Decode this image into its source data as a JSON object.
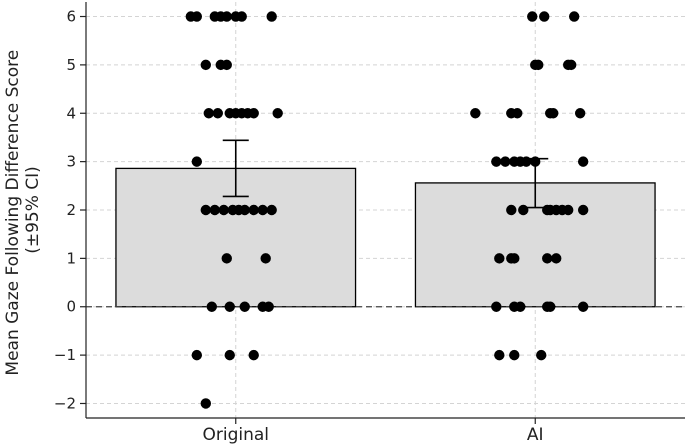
{
  "chart_data": {
    "type": "bar",
    "title": "",
    "xlabel": "",
    "ylabel_lines": [
      "Mean Gaze Following Difference Score",
      "(±95% CI)"
    ],
    "categories": [
      "Original",
      "AI"
    ],
    "values": [
      2.86,
      2.56
    ],
    "ci": [
      [
        2.28,
        3.44
      ],
      [
        2.05,
        3.06
      ]
    ],
    "ylim": [
      -2.3,
      6.3
    ],
    "yticks": [
      -2,
      -1,
      0,
      1,
      2,
      3,
      4,
      5,
      6
    ],
    "ytick_labels": [
      "−2",
      "−1",
      "0",
      "1",
      "2",
      "3",
      "4",
      "5",
      "6"
    ],
    "grid": true,
    "zero_line": "dashed",
    "colors": {
      "bar_fill": "#dcdcdc",
      "bar_edge": "#000000",
      "points": "#000000",
      "grid": "#d4d4d4"
    },
    "points": [
      {
        "category": "Original",
        "x_offset": [
          -0.15,
          -0.13,
          -0.07,
          -0.05,
          -0.03,
          0.0,
          0.02,
          0.12,
          -0.1,
          -0.05,
          -0.03,
          -0.09,
          -0.06,
          -0.02,
          0.0,
          0.02,
          0.04,
          0.06,
          0.14,
          -0.13,
          -0.1,
          -0.07,
          -0.04,
          -0.01,
          0.01,
          0.03,
          0.06,
          0.09,
          0.12,
          -0.03,
          0.1,
          -0.08,
          -0.02,
          0.03,
          0.09,
          0.11,
          -0.13,
          -0.02,
          0.06,
          -0.1
        ],
        "y": [
          6,
          6,
          6,
          6,
          6,
          6,
          6,
          6,
          5,
          5,
          5,
          4,
          4,
          4,
          4,
          4,
          4,
          4,
          4,
          3,
          2,
          2,
          2,
          2,
          2,
          2,
          2,
          2,
          2,
          1,
          1,
          0,
          0,
          0,
          0,
          0,
          -1,
          -1,
          -1,
          -2
        ]
      },
      {
        "category": "AI",
        "x_offset": [
          -0.01,
          0.03,
          0.13,
          0.0,
          0.01,
          0.11,
          0.12,
          -0.2,
          -0.08,
          -0.06,
          0.05,
          0.06,
          0.15,
          -0.13,
          -0.1,
          -0.07,
          -0.05,
          -0.03,
          0.0,
          0.16,
          -0.08,
          -0.04,
          0.04,
          0.05,
          0.07,
          0.09,
          0.11,
          0.16,
          -0.12,
          -0.08,
          -0.07,
          0.04,
          0.07,
          -0.13,
          -0.07,
          -0.05,
          0.04,
          0.05,
          0.16,
          -0.12,
          -0.07,
          0.02
        ],
        "y": [
          6,
          6,
          6,
          5,
          5,
          5,
          5,
          4,
          4,
          4,
          4,
          4,
          4,
          3,
          3,
          3,
          3,
          3,
          3,
          3,
          2,
          2,
          2,
          2,
          2,
          2,
          2,
          2,
          1,
          1,
          1,
          1,
          1,
          0,
          0,
          0,
          0,
          0,
          0,
          -1,
          -1,
          -1
        ]
      }
    ]
  }
}
